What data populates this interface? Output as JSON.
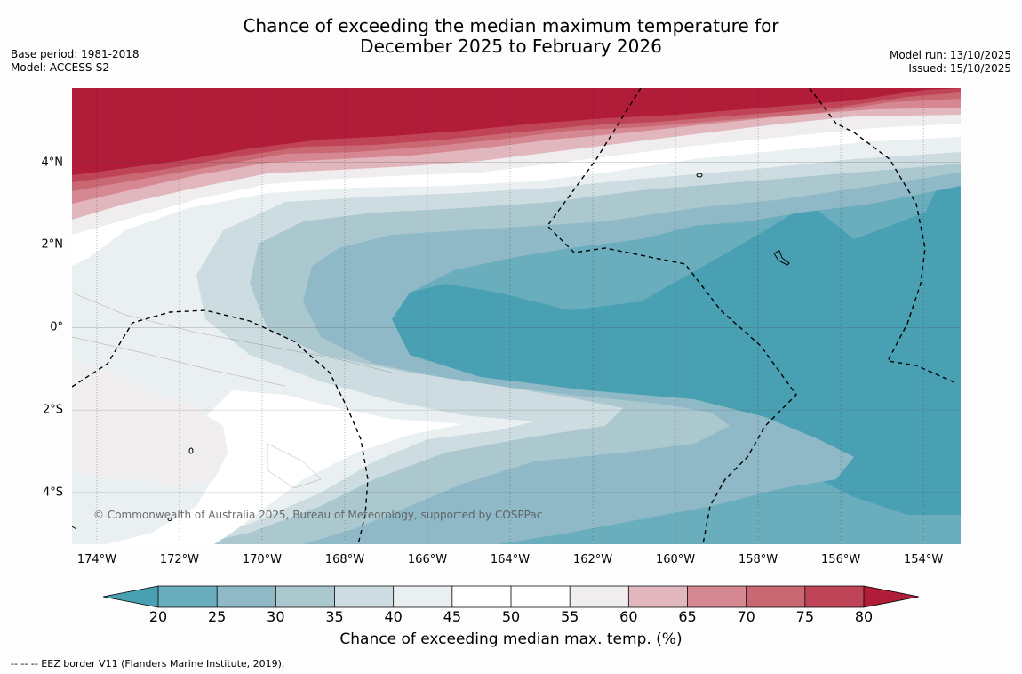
{
  "title_line1": "Chance of exceeding the median maximum temperature for",
  "title_line2": "December 2025 to February 2026",
  "meta_left": [
    "Base period: 1981-2018",
    "Model: ACCESS-S2"
  ],
  "meta_right": [
    "Model run: 13/10/2025",
    "Issued: 15/10/2025"
  ],
  "copyright": "© Commonwealth of Australia 2025, Bureau of Meteorology, supported by COSPPac",
  "lat_labels": [
    {
      "value": 4,
      "label": "4°N"
    },
    {
      "value": 2,
      "label": "2°N"
    },
    {
      "value": 0,
      "label": "0°"
    },
    {
      "value": -2,
      "label": "2°S"
    },
    {
      "value": -4,
      "label": "4°S"
    }
  ],
  "lon_labels": [
    {
      "value": -174,
      "label": "174°W"
    },
    {
      "value": -172,
      "label": "172°W"
    },
    {
      "value": -170,
      "label": "170°W"
    },
    {
      "value": -168,
      "label": "168°W"
    },
    {
      "value": -166,
      "label": "166°W"
    },
    {
      "value": -164,
      "label": "164°W"
    },
    {
      "value": -162,
      "label": "162°W"
    },
    {
      "value": -160,
      "label": "160°W"
    },
    {
      "value": -158,
      "label": "158°W"
    },
    {
      "value": -156,
      "label": "156°W"
    },
    {
      "value": -154,
      "label": "154°W"
    }
  ],
  "extent": {
    "lon_min": -174.6,
    "lon_max": -153.1,
    "lat_min": -5.25,
    "lat_max": 5.8
  },
  "colorbar": {
    "label": "Chance of exceeding median max. temp. (%)",
    "ticks": [
      "20",
      "25",
      "30",
      "35",
      "40",
      "45",
      "50",
      "55",
      "60",
      "65",
      "70",
      "75",
      "80"
    ],
    "under_color": "#4aa0b3",
    "over_color": "#b11c38",
    "colors": [
      "#6aadbc",
      "#8fb9c6",
      "#acc8cf",
      "#ccdce0",
      "#eaf0f2",
      "#ffffff",
      "#ffffff",
      "#efedee",
      "#e1b6bd",
      "#d58891",
      "#c96873",
      "#c04457"
    ]
  },
  "footnote": "--  --  -- EEZ border V11 (Flanders Marine Institute, 2019)."
}
